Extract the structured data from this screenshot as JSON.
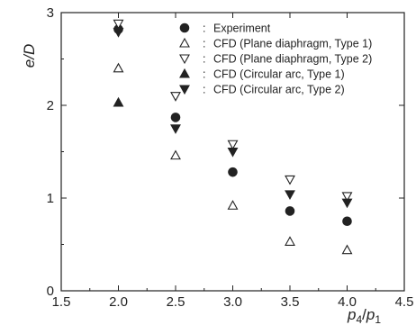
{
  "chart_data": {
    "type": "scatter",
    "title": "",
    "xlabel": "p4/p1",
    "xlabel_main": "p",
    "xlabel_sub1": "4",
    "xlabel_slash": "/",
    "xlabel_main2": "p",
    "xlabel_sub2": "1",
    "ylabel": "e/D",
    "xlim": [
      1.5,
      4.5
    ],
    "ylim": [
      0,
      3
    ],
    "xticks": [
      "1.5",
      "2.0",
      "2.5",
      "3.0",
      "3.5",
      "4.0",
      "4.5"
    ],
    "yticks": [
      "0",
      "1",
      "2",
      "3"
    ],
    "grid": false,
    "legend_position": "top-right",
    "series": [
      {
        "name": "Experiment",
        "marker": "circle-filled",
        "x": [
          2.0,
          2.5,
          3.0,
          3.5,
          4.0
        ],
        "y": [
          2.82,
          1.87,
          1.28,
          0.86,
          0.75
        ]
      },
      {
        "name": "CFD (Plane diaphragm, Type 1)",
        "marker": "triangle-up-open",
        "x": [
          2.0,
          2.5,
          3.0,
          3.5,
          4.0
        ],
        "y": [
          2.4,
          1.46,
          0.92,
          0.53,
          0.44
        ]
      },
      {
        "name": "CFD (Plane diaphragm, Type 2)",
        "marker": "triangle-down-open",
        "x": [
          2.0,
          2.5,
          3.0,
          3.5,
          4.0
        ],
        "y": [
          2.88,
          2.1,
          1.58,
          1.2,
          1.02
        ]
      },
      {
        "name": "CFD (Circular arc, Type 1)",
        "marker": "triangle-up-filled",
        "x": [
          2.0
        ],
        "y": [
          2.03
        ]
      },
      {
        "name": "CFD (Circular arc, Type 2)",
        "marker": "triangle-down-filled",
        "x": [
          2.0,
          2.5,
          3.0,
          3.5,
          4.0
        ],
        "y": [
          2.79,
          1.75,
          1.5,
          1.04,
          0.95
        ]
      }
    ],
    "legend_separator": ":"
  }
}
